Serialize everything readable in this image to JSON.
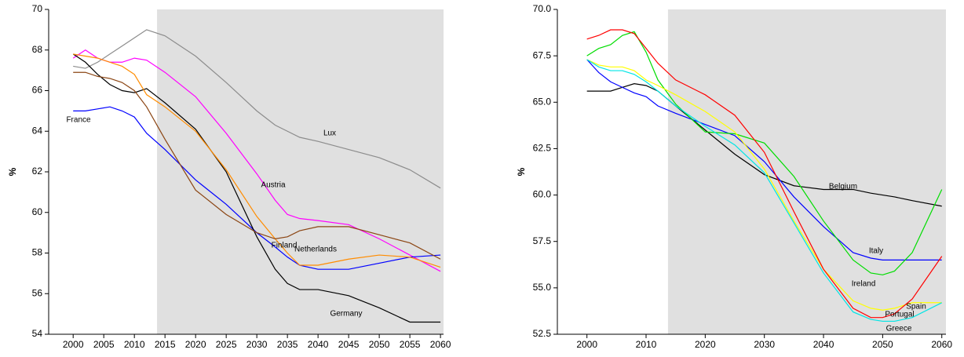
{
  "chart_data": [
    {
      "type": "line",
      "ylabel": "%",
      "xlim": [
        1996,
        2060.5
      ],
      "ylim": [
        54,
        70
      ],
      "xticks": [
        2000,
        2005,
        2010,
        2015,
        2020,
        2025,
        2030,
        2035,
        2040,
        2045,
        2050,
        2055,
        2060
      ],
      "yticks": [
        54,
        56,
        58,
        60,
        62,
        64,
        66,
        68,
        70
      ],
      "shaded_x_range": [
        2013.7,
        2060.5
      ],
      "shade_color": "#e0e0e0",
      "x": [
        2000,
        2002,
        2004,
        2006,
        2008,
        2010,
        2012,
        2015,
        2020,
        2025,
        2030,
        2033,
        2035,
        2037,
        2040,
        2045,
        2050,
        2055,
        2060
      ],
      "series": [
        {
          "name": "Lux",
          "color": "#8c8c8c",
          "values": [
            67.2,
            67.1,
            67.4,
            67.8,
            68.2,
            68.6,
            69.0,
            68.7,
            67.7,
            66.4,
            65.0,
            64.3,
            64.0,
            63.7,
            63.5,
            63.1,
            62.7,
            62.1,
            61.2
          ]
        },
        {
          "name": "Austria",
          "color": "#ff00ff",
          "values": [
            67.6,
            68.0,
            67.6,
            67.4,
            67.4,
            67.6,
            67.5,
            66.9,
            65.7,
            63.9,
            61.9,
            60.6,
            59.9,
            59.7,
            59.6,
            59.4,
            58.7,
            57.9,
            57.1
          ]
        },
        {
          "name": "France",
          "color": "#0000ff",
          "values": [
            65.0,
            65.0,
            65.1,
            65.2,
            65.0,
            64.7,
            63.9,
            63.1,
            61.6,
            60.4,
            59.0,
            58.3,
            57.8,
            57.4,
            57.2,
            57.2,
            57.5,
            57.8,
            57.9
          ]
        },
        {
          "name": "Germany",
          "color": "#000000",
          "values": [
            67.8,
            67.4,
            66.8,
            66.3,
            66.0,
            65.9,
            66.1,
            65.4,
            64.1,
            62.0,
            58.8,
            57.2,
            56.5,
            56.2,
            56.2,
            55.9,
            55.3,
            54.6,
            54.6
          ]
        },
        {
          "name": "Finland",
          "color": "#ff8c00",
          "values": [
            67.8,
            67.7,
            67.6,
            67.4,
            67.2,
            66.8,
            65.8,
            65.2,
            64.0,
            62.1,
            59.8,
            58.7,
            58.0,
            57.4,
            57.4,
            57.7,
            57.9,
            57.8,
            57.3
          ]
        },
        {
          "name": "Netherlands",
          "color": "#8b4513",
          "values": [
            66.9,
            66.9,
            66.7,
            66.6,
            66.4,
            66.0,
            65.2,
            63.6,
            61.1,
            59.9,
            59.0,
            58.7,
            58.8,
            59.1,
            59.3,
            59.3,
            58.9,
            58.5,
            57.7
          ]
        }
      ]
    },
    {
      "type": "line",
      "ylabel": "%",
      "xlim": [
        1995,
        2060.7
      ],
      "ylim": [
        52.5,
        70
      ],
      "xticks": [
        2000,
        2010,
        2020,
        2030,
        2040,
        2050,
        2060
      ],
      "yticks": [
        {
          "value": 52.5,
          "label": "52.5"
        },
        {
          "value": 55,
          "label": "55.0"
        },
        {
          "value": 57.5,
          "label": "57.5"
        },
        {
          "value": 60,
          "label": "60.0"
        },
        {
          "value": 62.5,
          "label": "62.5"
        },
        {
          "value": 65,
          "label": "65.0"
        },
        {
          "value": 67.5,
          "label": "67.5"
        },
        {
          "value": 70,
          "label": "70.0"
        }
      ],
      "shaded_x_range": [
        2013.7,
        2060.7
      ],
      "shade_color": "#e0e0e0",
      "x": [
        2000,
        2002,
        2004,
        2006,
        2008,
        2010,
        2012,
        2015,
        2020,
        2025,
        2030,
        2035,
        2040,
        2045,
        2048,
        2050,
        2052,
        2055,
        2060
      ],
      "series": [
        {
          "name": "Belgium",
          "color": "#000000",
          "values": [
            65.6,
            65.6,
            65.6,
            65.8,
            66.0,
            65.9,
            65.6,
            64.8,
            63.5,
            62.2,
            61.1,
            60.5,
            60.3,
            60.3,
            60.1,
            60.0,
            59.9,
            59.7,
            59.4
          ]
        },
        {
          "name": "Italy",
          "color": "#0000ff",
          "values": [
            67.3,
            66.6,
            66.1,
            65.8,
            65.5,
            65.3,
            64.8,
            64.4,
            63.8,
            63.2,
            61.8,
            59.9,
            58.3,
            56.9,
            56.6,
            56.5,
            56.5,
            56.5,
            56.5
          ]
        },
        {
          "name": "Ireland",
          "color": "#00dd00",
          "values": [
            67.5,
            67.9,
            68.1,
            68.6,
            68.8,
            67.7,
            66.2,
            64.9,
            63.4,
            63.3,
            62.8,
            61.0,
            58.6,
            56.5,
            55.8,
            55.7,
            55.9,
            56.9,
            60.3
          ]
        },
        {
          "name": "Spain",
          "color": "#ffff00",
          "values": [
            67.3,
            67.0,
            66.9,
            66.9,
            66.7,
            66.2,
            65.9,
            65.4,
            64.5,
            63.4,
            61.4,
            58.6,
            56.0,
            54.3,
            53.9,
            53.8,
            53.9,
            54.2,
            54.2
          ]
        },
        {
          "name": "Portugal",
          "color": "#ff0000",
          "values": [
            68.4,
            68.6,
            68.9,
            68.9,
            68.7,
            67.9,
            67.1,
            66.2,
            65.4,
            64.3,
            62.3,
            59.1,
            56.0,
            53.9,
            53.4,
            53.4,
            53.6,
            54.4,
            56.7
          ]
        },
        {
          "name": "Greece",
          "color": "#00e5e5",
          "values": [
            67.3,
            66.9,
            66.7,
            66.7,
            66.5,
            66.1,
            65.6,
            64.8,
            63.7,
            62.7,
            61.2,
            58.5,
            55.8,
            53.7,
            53.3,
            53.2,
            53.2,
            53.4,
            54.2
          ]
        }
      ]
    }
  ]
}
